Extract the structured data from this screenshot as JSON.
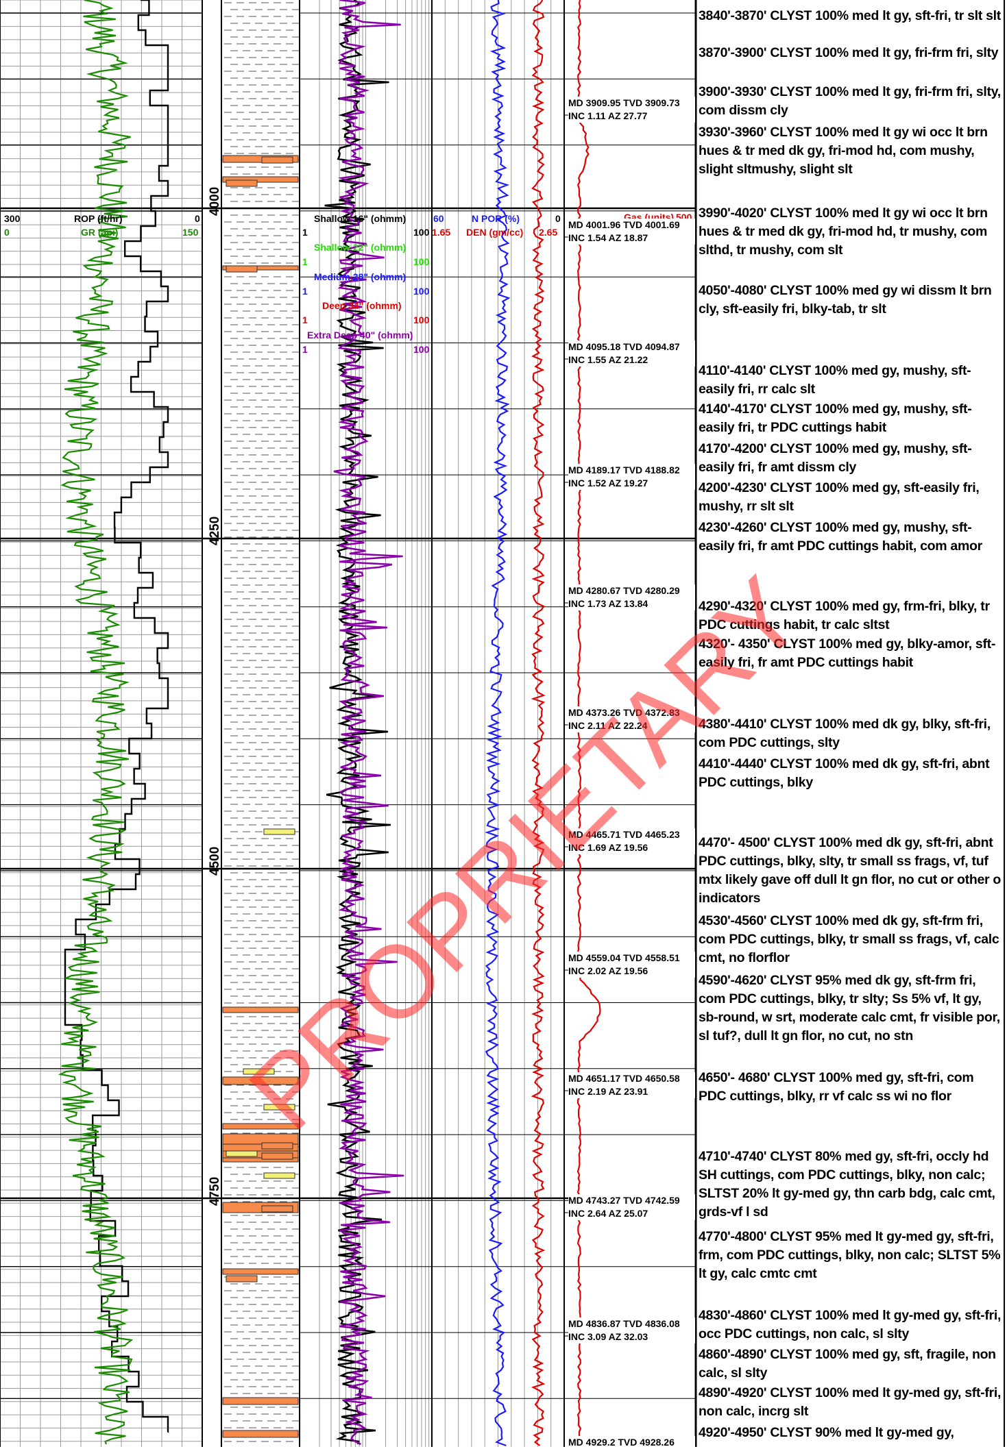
{
  "log": {
    "depth_labels": [
      "4000",
      "4250",
      "4500",
      "4750"
    ],
    "header": {
      "rop": {
        "title": "ROP (ft/hr)",
        "min": "300",
        "max": "0",
        "color": "#000000"
      },
      "gr": {
        "title": "GR (api)",
        "min": "0",
        "max": "150",
        "color": "#1a8a00"
      },
      "resistivity": [
        {
          "title": "Shallow 16\" (ohmm)",
          "min": "1",
          "max": "100",
          "color": "#000000"
        },
        {
          "title": "Shallow 22\" (ohmm)",
          "min": "1",
          "max": "100",
          "color": "#22dd00"
        },
        {
          "title": "Medium 28\" (ohmm)",
          "min": "1",
          "max": "100",
          "color": "#1a1aff"
        },
        {
          "title": "Deep 34\" (ohmm)",
          "min": "1",
          "max": "100",
          "color": "#e00000"
        },
        {
          "title": "Extra Deep 40\" (ohmm)",
          "min": "1",
          "max": "100",
          "color": "#8a00a8"
        }
      ],
      "npor": {
        "title": "N POR (%)",
        "min": "60",
        "max": "0",
        "color": "#1a1aff"
      },
      "den": {
        "title": "DEN (gm/cc)",
        "min": "1.65",
        "max": "2.65",
        "color": "#e00000"
      },
      "gas": {
        "title": "Gas (units)",
        "max": "500",
        "color": "#e00000"
      }
    },
    "watermark": "PROPRIETARY"
  },
  "surveys": [
    {
      "line1": "MD 3909.95 TVD 3909.73",
      "line2": "INC 1.11 AZ 27.77"
    },
    {
      "line1": "MD 4001.96 TVD 4001.69",
      "line2": "INC 1.54 AZ 18.87"
    },
    {
      "line1": "MD 4095.18 TVD 4094.87",
      "line2": "INC 1.55 AZ 21.22"
    },
    {
      "line1": "MD 4189.17 TVD 4188.82",
      "line2": "INC 1.52 AZ 19.27"
    },
    {
      "line1": "MD 4280.67 TVD 4280.29",
      "line2": "INC 1.73 AZ 13.84"
    },
    {
      "line1": "MD 4373.26 TVD 4372.83",
      "line2": "INC 2.11 AZ 22.24"
    },
    {
      "line1": "MD 4465.71 TVD 4465.23",
      "line2": "INC 1.69 AZ 19.56"
    },
    {
      "line1": "MD 4559.04 TVD 4558.51",
      "line2": "INC 2.02 AZ 19.56"
    },
    {
      "line1": "MD 4651.17 TVD 4650.58",
      "line2": "INC 2.19 AZ 23.91"
    },
    {
      "line1": "MD 4743.27 TVD 4742.59",
      "line2": "INC 2.64 AZ 25.07"
    },
    {
      "line1": "MD 4836.87 TVD 4836.08",
      "line2": "INC 3.09 AZ 32.03"
    },
    {
      "line1": "MD 4929.2 TVD 4928.26",
      "line2": ""
    }
  ],
  "descriptions": [
    "3840'-3870' CLYST 100% med lt gy, sft-fri, tr slt slt",
    "3870'-3900' CLYST 100% med lt gy, fri-frm fri, slty",
    "3900'-3930' CLYST 100% med lt gy, fri-frm fri, slty, com dissm cly",
    "3930'-3960' CLYST 100% med lt gy wi occ lt brn hues & tr med dk gy, fri-mod hd, com mushy, slight sltmushy, slight slt",
    "3990'-4020' CLYST 100% med lt gy wi occ lt brn hues & tr med dk gy, fri-mod hd, tr mushy, com slthd, tr mushy, com slt",
    "4050'-4080' CLYST 100% med gy wi dissm lt brn cly, sft-easily fri, blky-tab, tr slt",
    "4110'-4140' CLYST 100% med gy, mushy, sft-easily fri, rr calc slt",
    "4140'-4170' CLYST 100% med gy, mushy, sft-easily fri, tr PDC cuttings habit",
    "4170'-4200' CLYST 100% med gy, mushy, sft-easily fri, fr amt dissm cly",
    "4200'-4230' CLYST 100% med gy, sft-easily fri, mushy, rr slt slt",
    "4230'-4260' CLYST 100% med gy, mushy, sft-easily fri, fr amt PDC cuttings habit, com amor",
    "4290'-4320' CLYST 100% med gy, frm-fri, blky, tr PDC cuttings habit, tr calc sltst",
    "4320'- 4350' CLYST 100% med gy, blky-amor, sft-easily fri, fr amt PDC cuttings habit",
    "4380'-4410' CLYST 100% med dk gy, blky, sft-fri, com PDC cuttings, slty",
    "4410'-4440' CLYST 100% med dk gy, sft-fri, abnt PDC cuttings, blky",
    "4470'- 4500' CLYST 100% med dk gy, sft-fri, abnt PDC cuttings, blky, slty, tr small ss frags, vf, tuf mtx likely gave off dull lt gn flor, no cut or other o indicators",
    "4530'-4560' CLYST 100% med dk gy, sft-frm fri, com PDC cuttings, blky, tr small ss frags, vf, calc cmt, no florflor",
    "4590'-4620' CLYST 95% med dk gy, sft-frm fri, com PDC cuttings, blky, tr slty; Ss 5% vf, lt gy, sb-round, w srt, moderate calc cmt, fr visible por, sl tuf?, dull lt gn flor, no cut, no stn",
    "4650'- 4680' CLYST 100% med gy, sft-fri, com PDC cuttings, blky, rr vf calc ss wi no flor",
    "4710'-4740' CLYST 80% med gy, sft-fri, occly hd SH cuttings, com PDC cuttings, blky, non calc; SLTST 20% lt gy-med gy, thn carb bdg, calc cmt, grds-vf l sd",
    "4770'-4800' CLYST 95% med lt gy-med gy, sft-fri, frm, com PDC cuttings, blky, non calc; SLTST 5% lt gy, calc cmtc cmt",
    "4830'-4860' CLYST 100% med lt gy-med gy, sft-fri, occ PDC cuttings, non calc, sl slty",
    "4860'-4890' CLYST 100% med gy, sft, fragile, non calc, sl slty",
    "4890'-4920' CLYST 100% med lt gy-med gy, sft-fri, non calc, incrg slt",
    "4920'-4950' CLYST 90% med lt gy-med gy,"
  ]
}
